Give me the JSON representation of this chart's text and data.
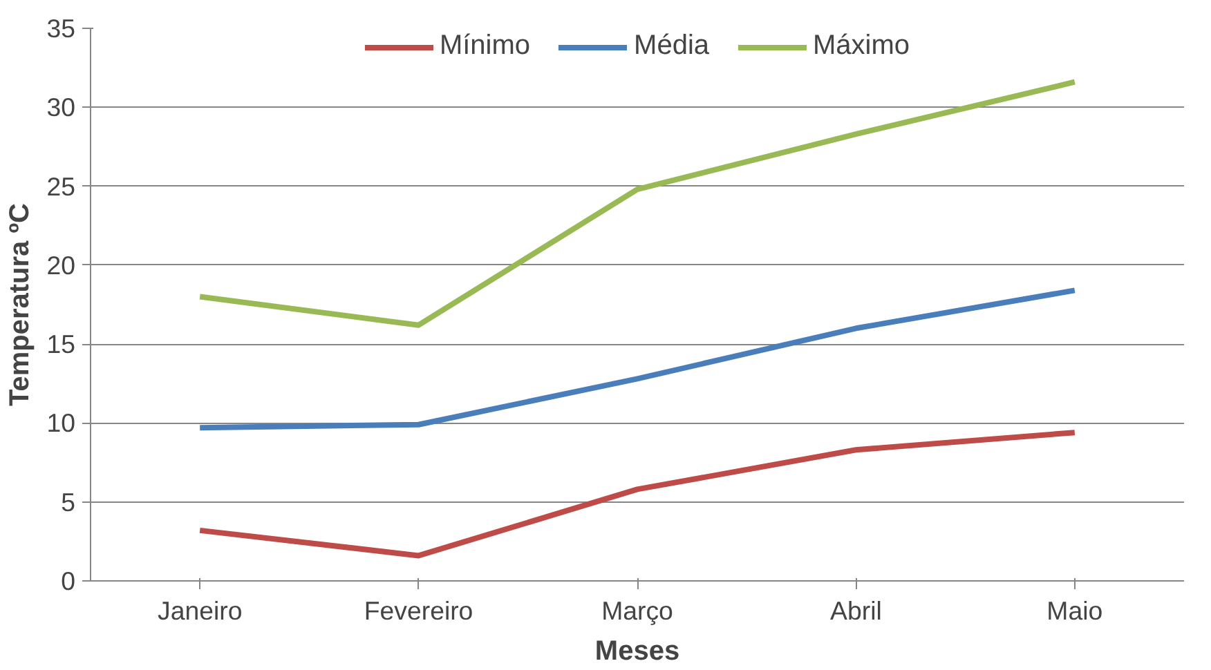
{
  "chart_data": {
    "type": "line",
    "xlabel": "Meses",
    "ylabel": "Temperatura ºC",
    "categories": [
      "Janeiro",
      "Fevereiro",
      "Março",
      "Abril",
      "Maio"
    ],
    "series": [
      {
        "name": "Mínimo",
        "color": "#be4b48",
        "values": [
          3.2,
          1.6,
          5.8,
          8.3,
          9.4
        ]
      },
      {
        "name": "Média",
        "color": "#4a7ebb",
        "values": [
          9.7,
          9.9,
          12.8,
          16.0,
          18.4
        ]
      },
      {
        "name": "Máximo",
        "color": "#98b954",
        "values": [
          18.0,
          16.2,
          24.8,
          28.3,
          31.6
        ]
      }
    ],
    "ylim": [
      0,
      35
    ],
    "yticks": [
      0,
      5,
      10,
      15,
      20,
      25,
      30,
      35
    ],
    "grid": "y",
    "legend": "top"
  }
}
